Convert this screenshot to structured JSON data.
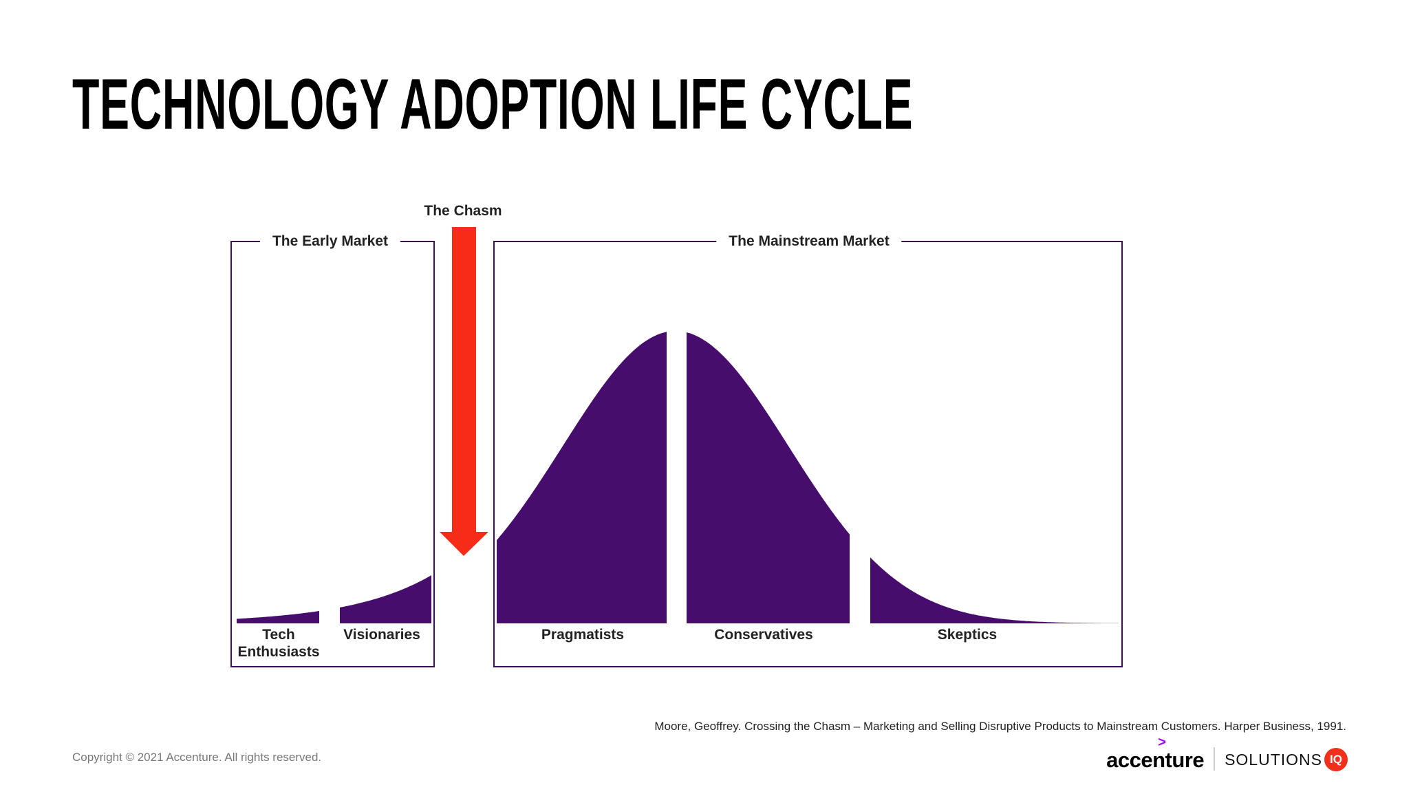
{
  "title": "TECHNOLOGY ADOPTION LIFE CYCLE",
  "chasm": {
    "label": "The Chasm",
    "color": "#f52c17"
  },
  "early_market": {
    "label": "The Early Market",
    "segments": [
      {
        "line1": "Tech",
        "line2": "Enthusiasts"
      },
      {
        "line1": "Visionaries"
      }
    ]
  },
  "mainstream_market": {
    "label": "The Mainstream Market",
    "segments": [
      {
        "line1": "Pragmatists"
      },
      {
        "line1": "Conservatives"
      },
      {
        "line1": "Skeptics"
      }
    ]
  },
  "colors": {
    "curve": "#470d6d",
    "box_border": "#3b1059",
    "arrow": "#f52c17"
  },
  "citation": "Moore, Geoffrey. Crossing the Chasm – Marketing and Selling Disruptive Products to Mainstream Customers. Harper Business, 1991.",
  "copyright": "Copyright © 2021 Accenture. All rights reserved.",
  "logos": {
    "accenture": "accenture",
    "accenture_mark": ">",
    "solutions": "SOLUTIONS",
    "iq": "IQ"
  }
}
